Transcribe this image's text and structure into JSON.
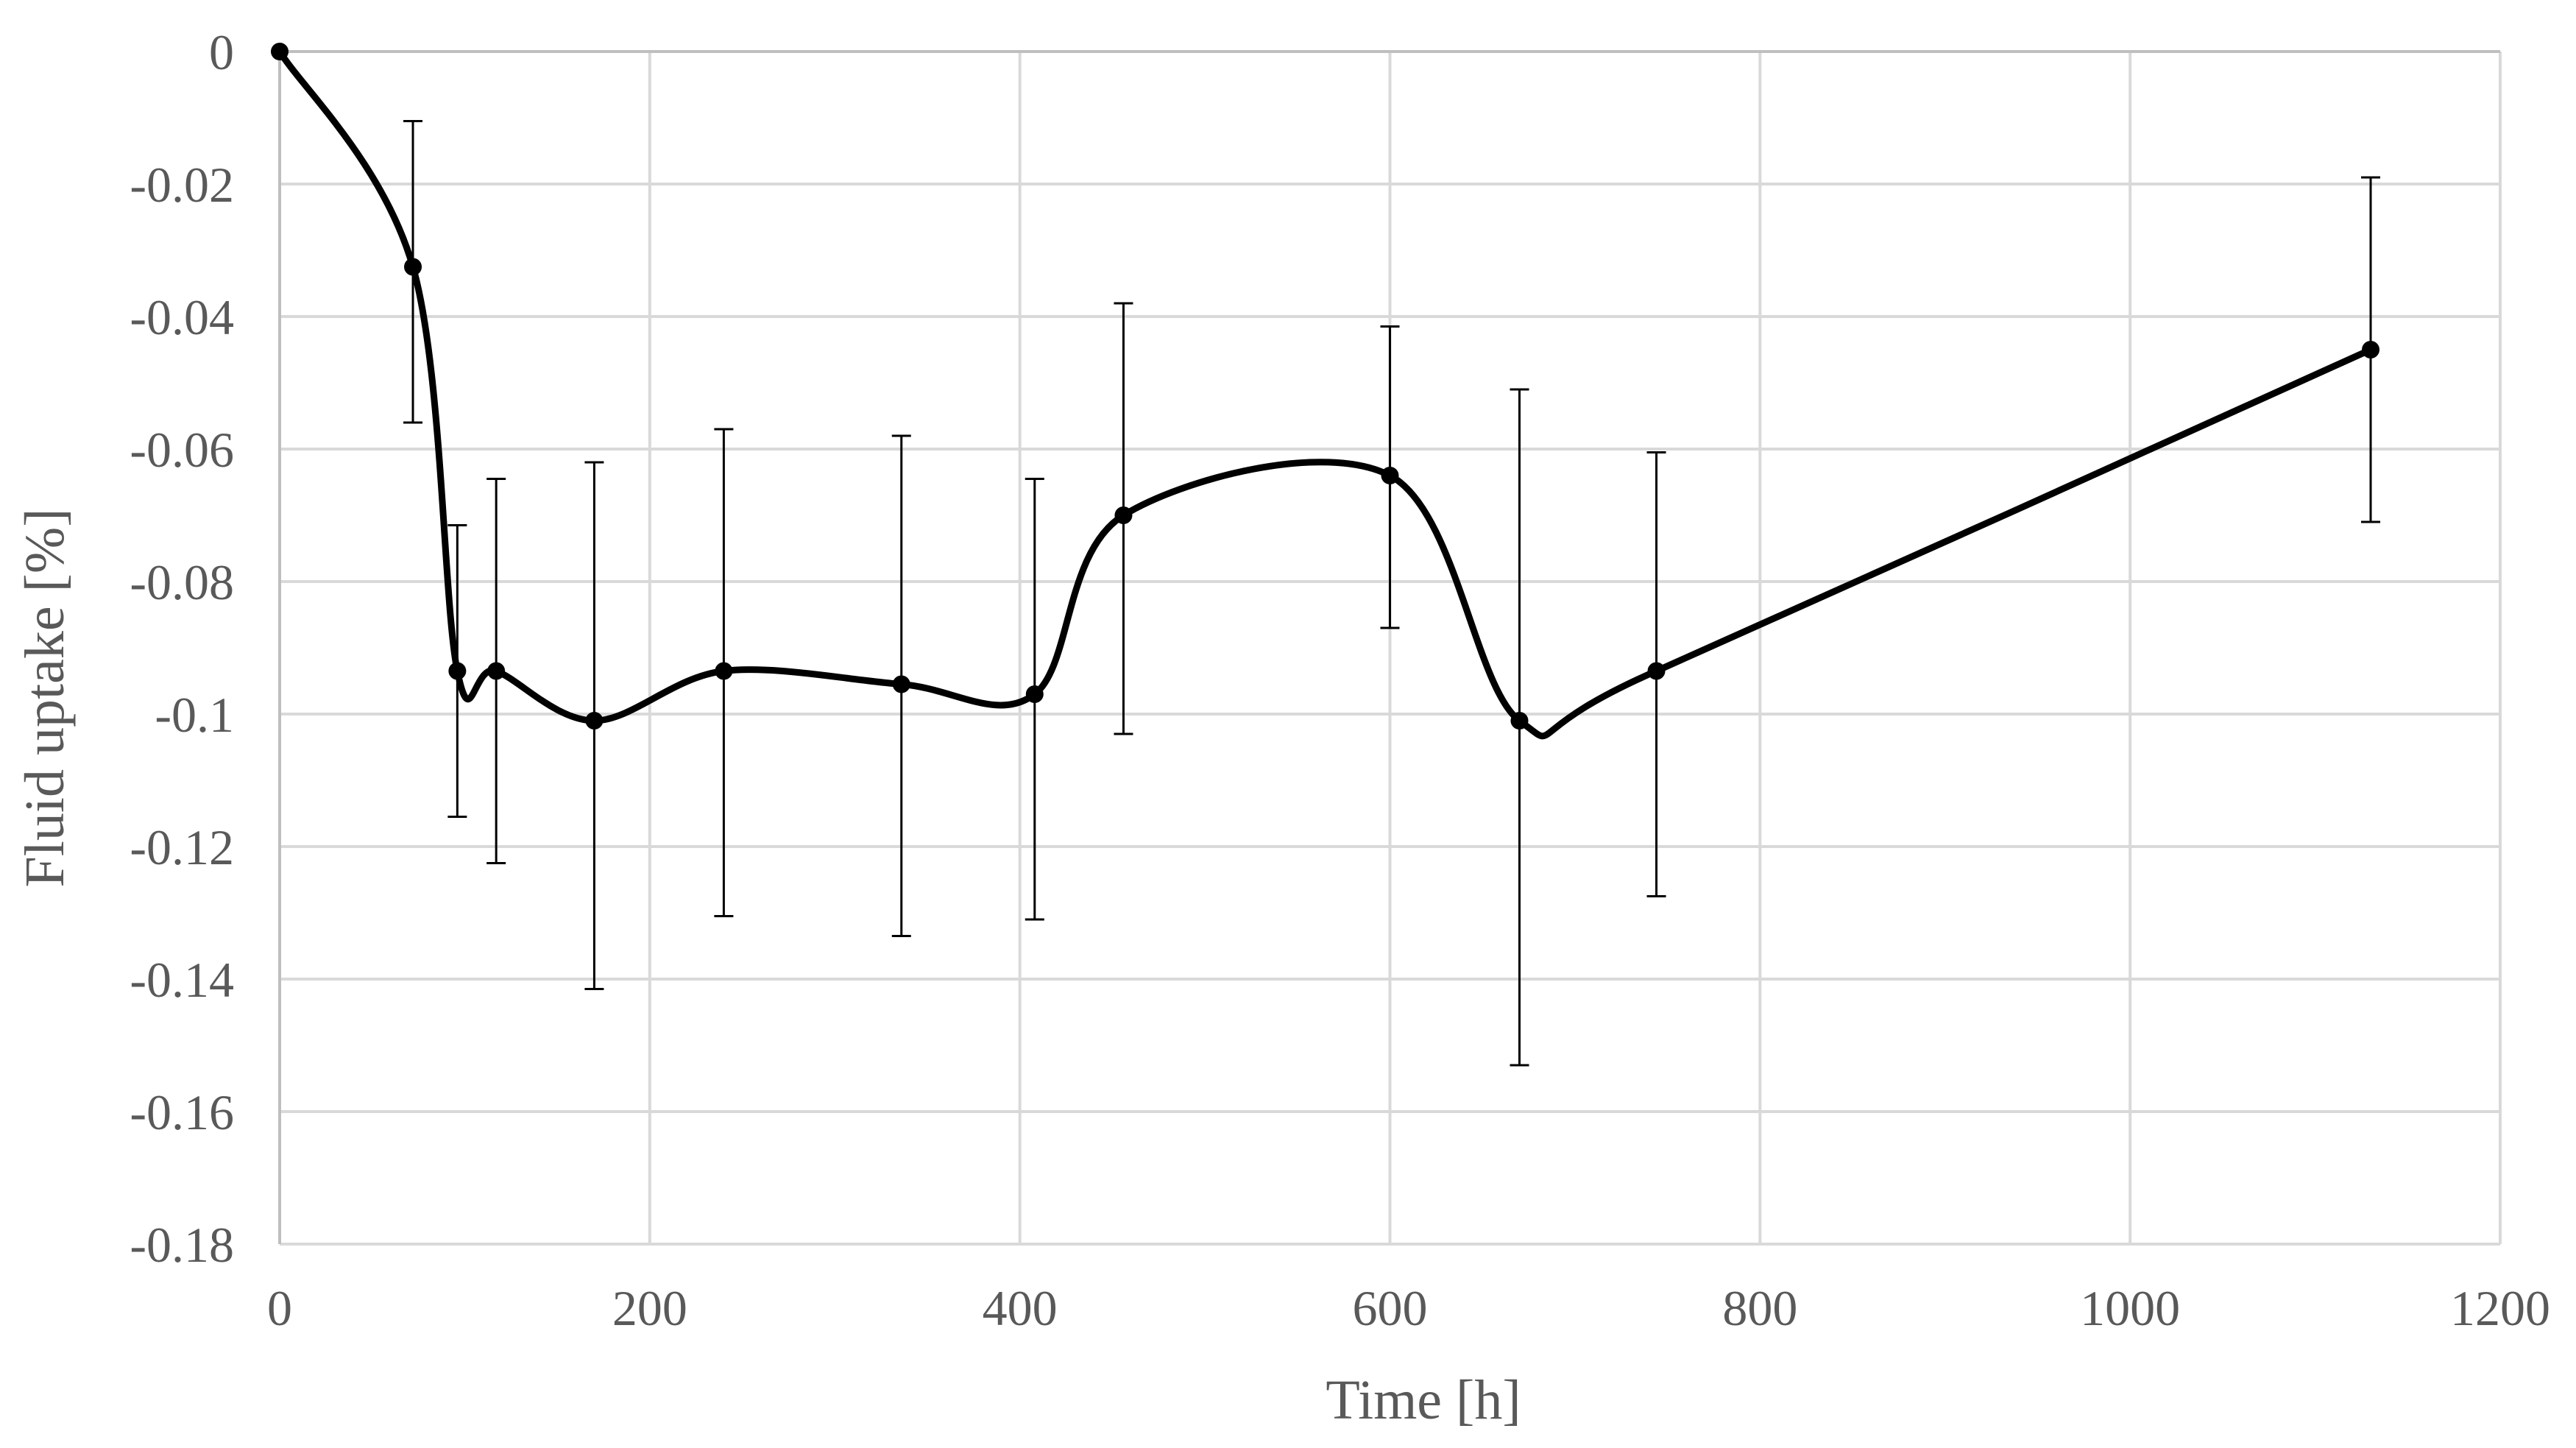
{
  "chart_data": {
    "type": "line",
    "title": "",
    "xlabel": "Time [h]",
    "ylabel": "Fluid uptake [%]",
    "xlim": [
      0,
      1200
    ],
    "ylim": [
      -0.18,
      0
    ],
    "xticks": [
      0,
      200,
      400,
      600,
      800,
      1000,
      1200
    ],
    "yticks": [
      0,
      -0.02,
      -0.04,
      -0.06,
      -0.08,
      -0.1,
      -0.12,
      -0.14,
      -0.16,
      -0.18
    ],
    "xtick_labels": [
      "0",
      "200",
      "400",
      "600",
      "800",
      "1000",
      "1200"
    ],
    "ytick_labels": [
      "0",
      "-0.02",
      "-0.04",
      "-0.06",
      "-0.08",
      "-0.1",
      "-0.12",
      "-0.14",
      "-0.16",
      "-0.18"
    ],
    "grid": true,
    "smooth": true,
    "series": [
      {
        "name": "Fluid uptake",
        "color": "#000000",
        "x": [
          0,
          72,
          96,
          117,
          170,
          240,
          336,
          408,
          456,
          600,
          670,
          744,
          1130
        ],
        "y": [
          0,
          -0.0325,
          -0.0935,
          -0.0935,
          -0.101,
          -0.0935,
          -0.0955,
          -0.097,
          -0.07,
          -0.064,
          -0.101,
          -0.0935,
          -0.045
        ],
        "error_low": [
          0,
          -0.056,
          -0.1155,
          -0.1225,
          -0.1415,
          -0.1305,
          -0.1335,
          -0.131,
          -0.103,
          -0.087,
          -0.153,
          -0.1275,
          -0.071
        ],
        "error_high": [
          0,
          -0.0105,
          -0.0715,
          -0.0645,
          -0.062,
          -0.057,
          -0.058,
          -0.0645,
          -0.038,
          -0.0415,
          -0.051,
          -0.0605,
          -0.019
        ]
      }
    ]
  }
}
